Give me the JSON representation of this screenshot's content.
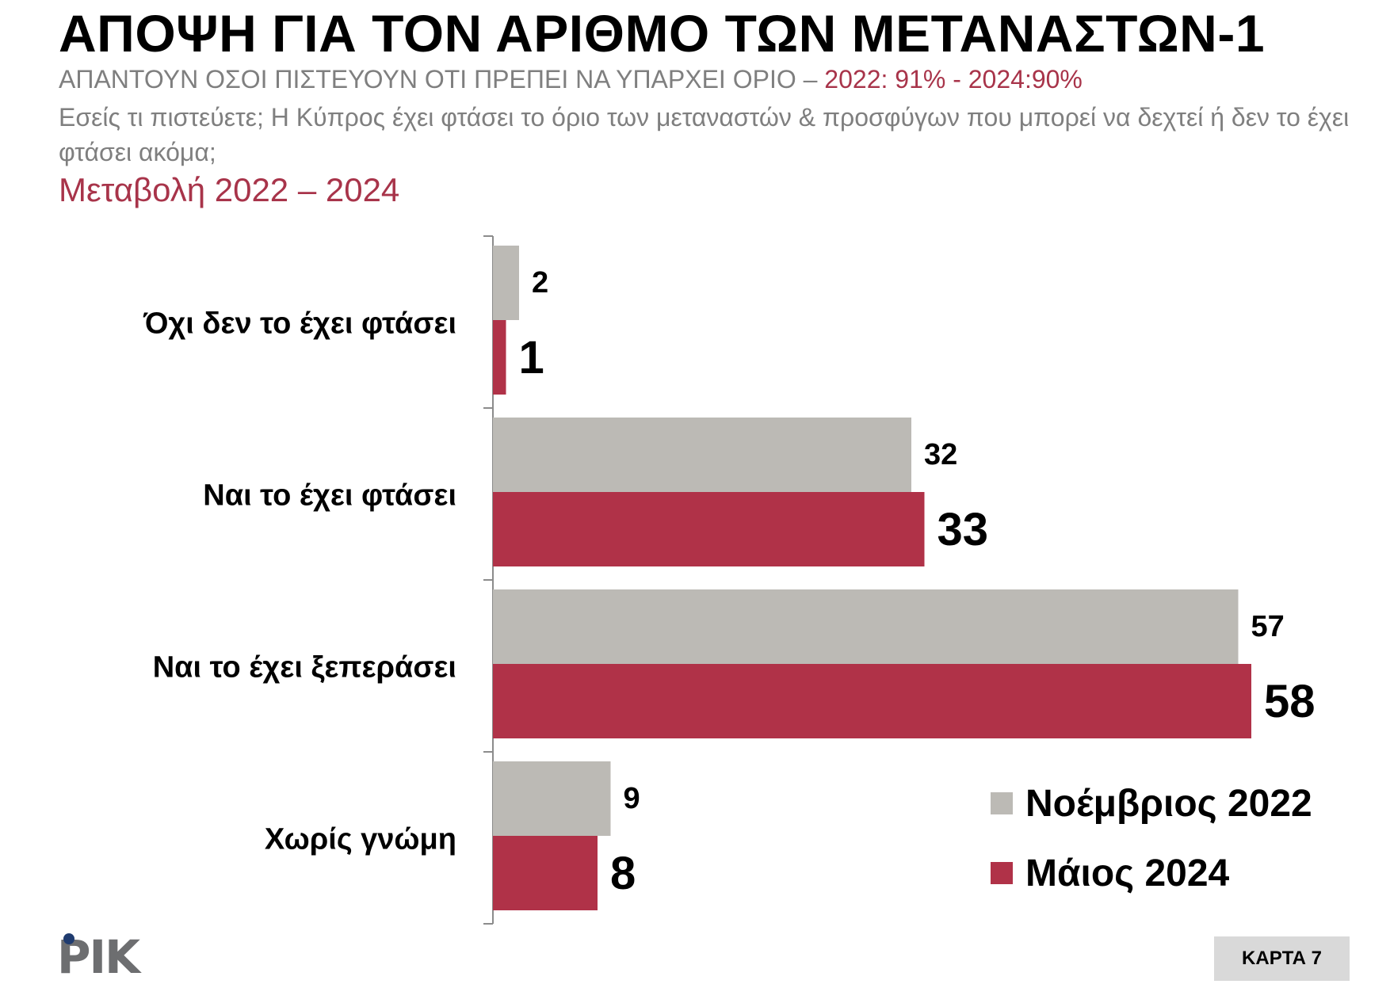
{
  "header": {
    "title": "ΑΠΟΨΗ ΓΙΑ ΤΟΝ ΑΡΙΘΜΟ ΤΩΝ ΜΕΤΑΝΑΣΤΩΝ-1",
    "subtitle_prefix": "ΑΠΑΝΤΟΥΝ ΟΣΟΙ ΠΙΣΤΕΥΟΥΝ ΟΤΙ ΠΡΕΠΕΙ ΝΑ ΥΠΑΡΧΕΙ ΟΡΙΟ – ",
    "subtitle_accent": "2022: 91% - 2024:90%",
    "question": "Εσείς τι πιστεύετε; Η Κύπρος έχει φτάσει το όριο των μεταναστών & προσφύγων που μπορεί να δεχτεί ή δεν το έχει φτάσει ακόμα;",
    "change_label": "Μεταβολή 2022 – 2024"
  },
  "colors": {
    "nov2022": "#bcbab5",
    "may2024": "#b03248",
    "accent_text": "#a8344a",
    "muted_text": "#7f7f7f"
  },
  "chart_data": {
    "type": "bar",
    "orientation": "horizontal",
    "categories": [
      "Όχι δεν το έχει φτάσει",
      "Ναι το έχει φτάσει",
      "Ναι το έχει ξεπεράσει",
      "Χωρίς γνώμη"
    ],
    "series": [
      {
        "name": "Νοέμβριος 2022",
        "values": [
          2,
          32,
          57,
          9
        ]
      },
      {
        "name": "Μάιος 2024",
        "values": [
          1,
          33,
          58,
          8
        ]
      }
    ],
    "xlim": [
      0,
      60
    ],
    "grid": false,
    "legend_position": "bottom-right"
  },
  "footer": {
    "logo_text": "ΡΙΚ",
    "card_label": "ΚΑΡΤΑ 7"
  }
}
